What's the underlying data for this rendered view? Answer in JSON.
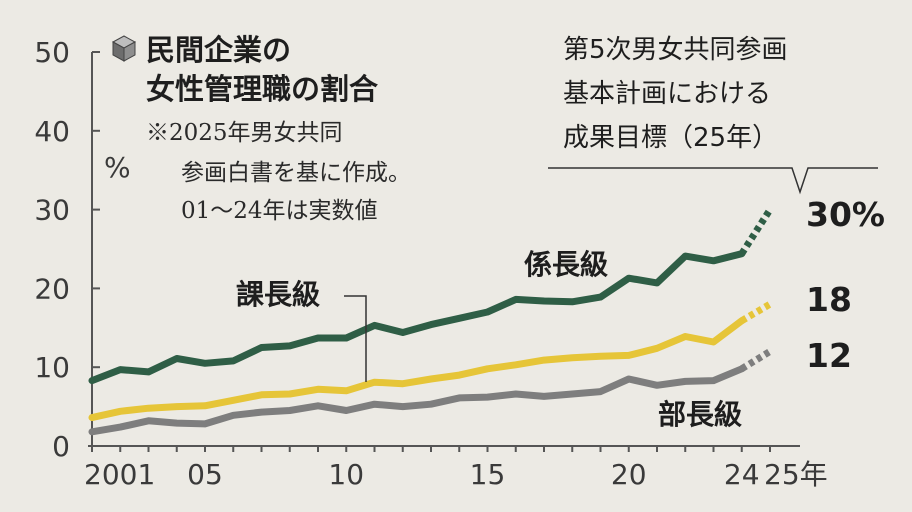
{
  "chart_data": {
    "type": "line",
    "title": [
      "民間企業の",
      "女性管理職の割合"
    ],
    "note": [
      "※2025年男女共同",
      "参画白書を基に作成。",
      "01〜24年は実数値"
    ],
    "unit": "%",
    "ylim": [
      0,
      50
    ],
    "yticks": [
      "50",
      "40",
      "30",
      "20",
      "10",
      "0"
    ],
    "x_tick_labels": [
      {
        "year": 2001,
        "text": "2001"
      },
      {
        "year": 2005,
        "text": "05"
      },
      {
        "year": 2010,
        "text": "10"
      },
      {
        "year": 2015,
        "text": "15"
      },
      {
        "year": 2020,
        "text": "20"
      },
      {
        "year": 2024,
        "text": "24"
      },
      {
        "year": 2025,
        "text": "25年"
      }
    ],
    "x": [
      2001,
      2002,
      2003,
      2004,
      2005,
      2006,
      2007,
      2008,
      2009,
      2010,
      2011,
      2012,
      2013,
      2014,
      2015,
      2016,
      2017,
      2018,
      2019,
      2020,
      2021,
      2022,
      2023,
      2024
    ],
    "series": [
      {
        "name": "係長級",
        "color": "#2f5e46",
        "values": [
          8.3,
          9.7,
          9.4,
          11.1,
          10.5,
          10.8,
          12.5,
          12.7,
          13.7,
          13.7,
          15.3,
          14.4,
          15.4,
          16.2,
          17.0,
          18.6,
          18.4,
          18.3,
          18.9,
          21.3,
          20.7,
          24.1,
          23.5,
          24.4
        ],
        "target": 30,
        "target_label": "30%"
      },
      {
        "name": "課長級",
        "color": "#e6c538",
        "values": [
          3.6,
          4.4,
          4.8,
          5.0,
          5.1,
          5.8,
          6.5,
          6.6,
          7.2,
          7.0,
          8.1,
          7.9,
          8.5,
          9.0,
          9.8,
          10.3,
          10.9,
          11.2,
          11.4,
          11.5,
          12.4,
          13.9,
          13.2,
          15.9
        ],
        "target": 18,
        "target_label": "18"
      },
      {
        "name": "部長級",
        "color": "#7e7e7e",
        "values": [
          1.8,
          2.4,
          3.2,
          2.9,
          2.8,
          3.9,
          4.3,
          4.5,
          5.1,
          4.5,
          5.3,
          5.0,
          5.3,
          6.1,
          6.2,
          6.6,
          6.3,
          6.6,
          6.9,
          8.5,
          7.7,
          8.2,
          8.3,
          9.8
        ],
        "target": 12,
        "target_label": "12"
      }
    ],
    "target_caption": [
      "第5次男女共同参画",
      "基本計画における",
      "成果目標（25年）"
    ],
    "grid": false
  }
}
